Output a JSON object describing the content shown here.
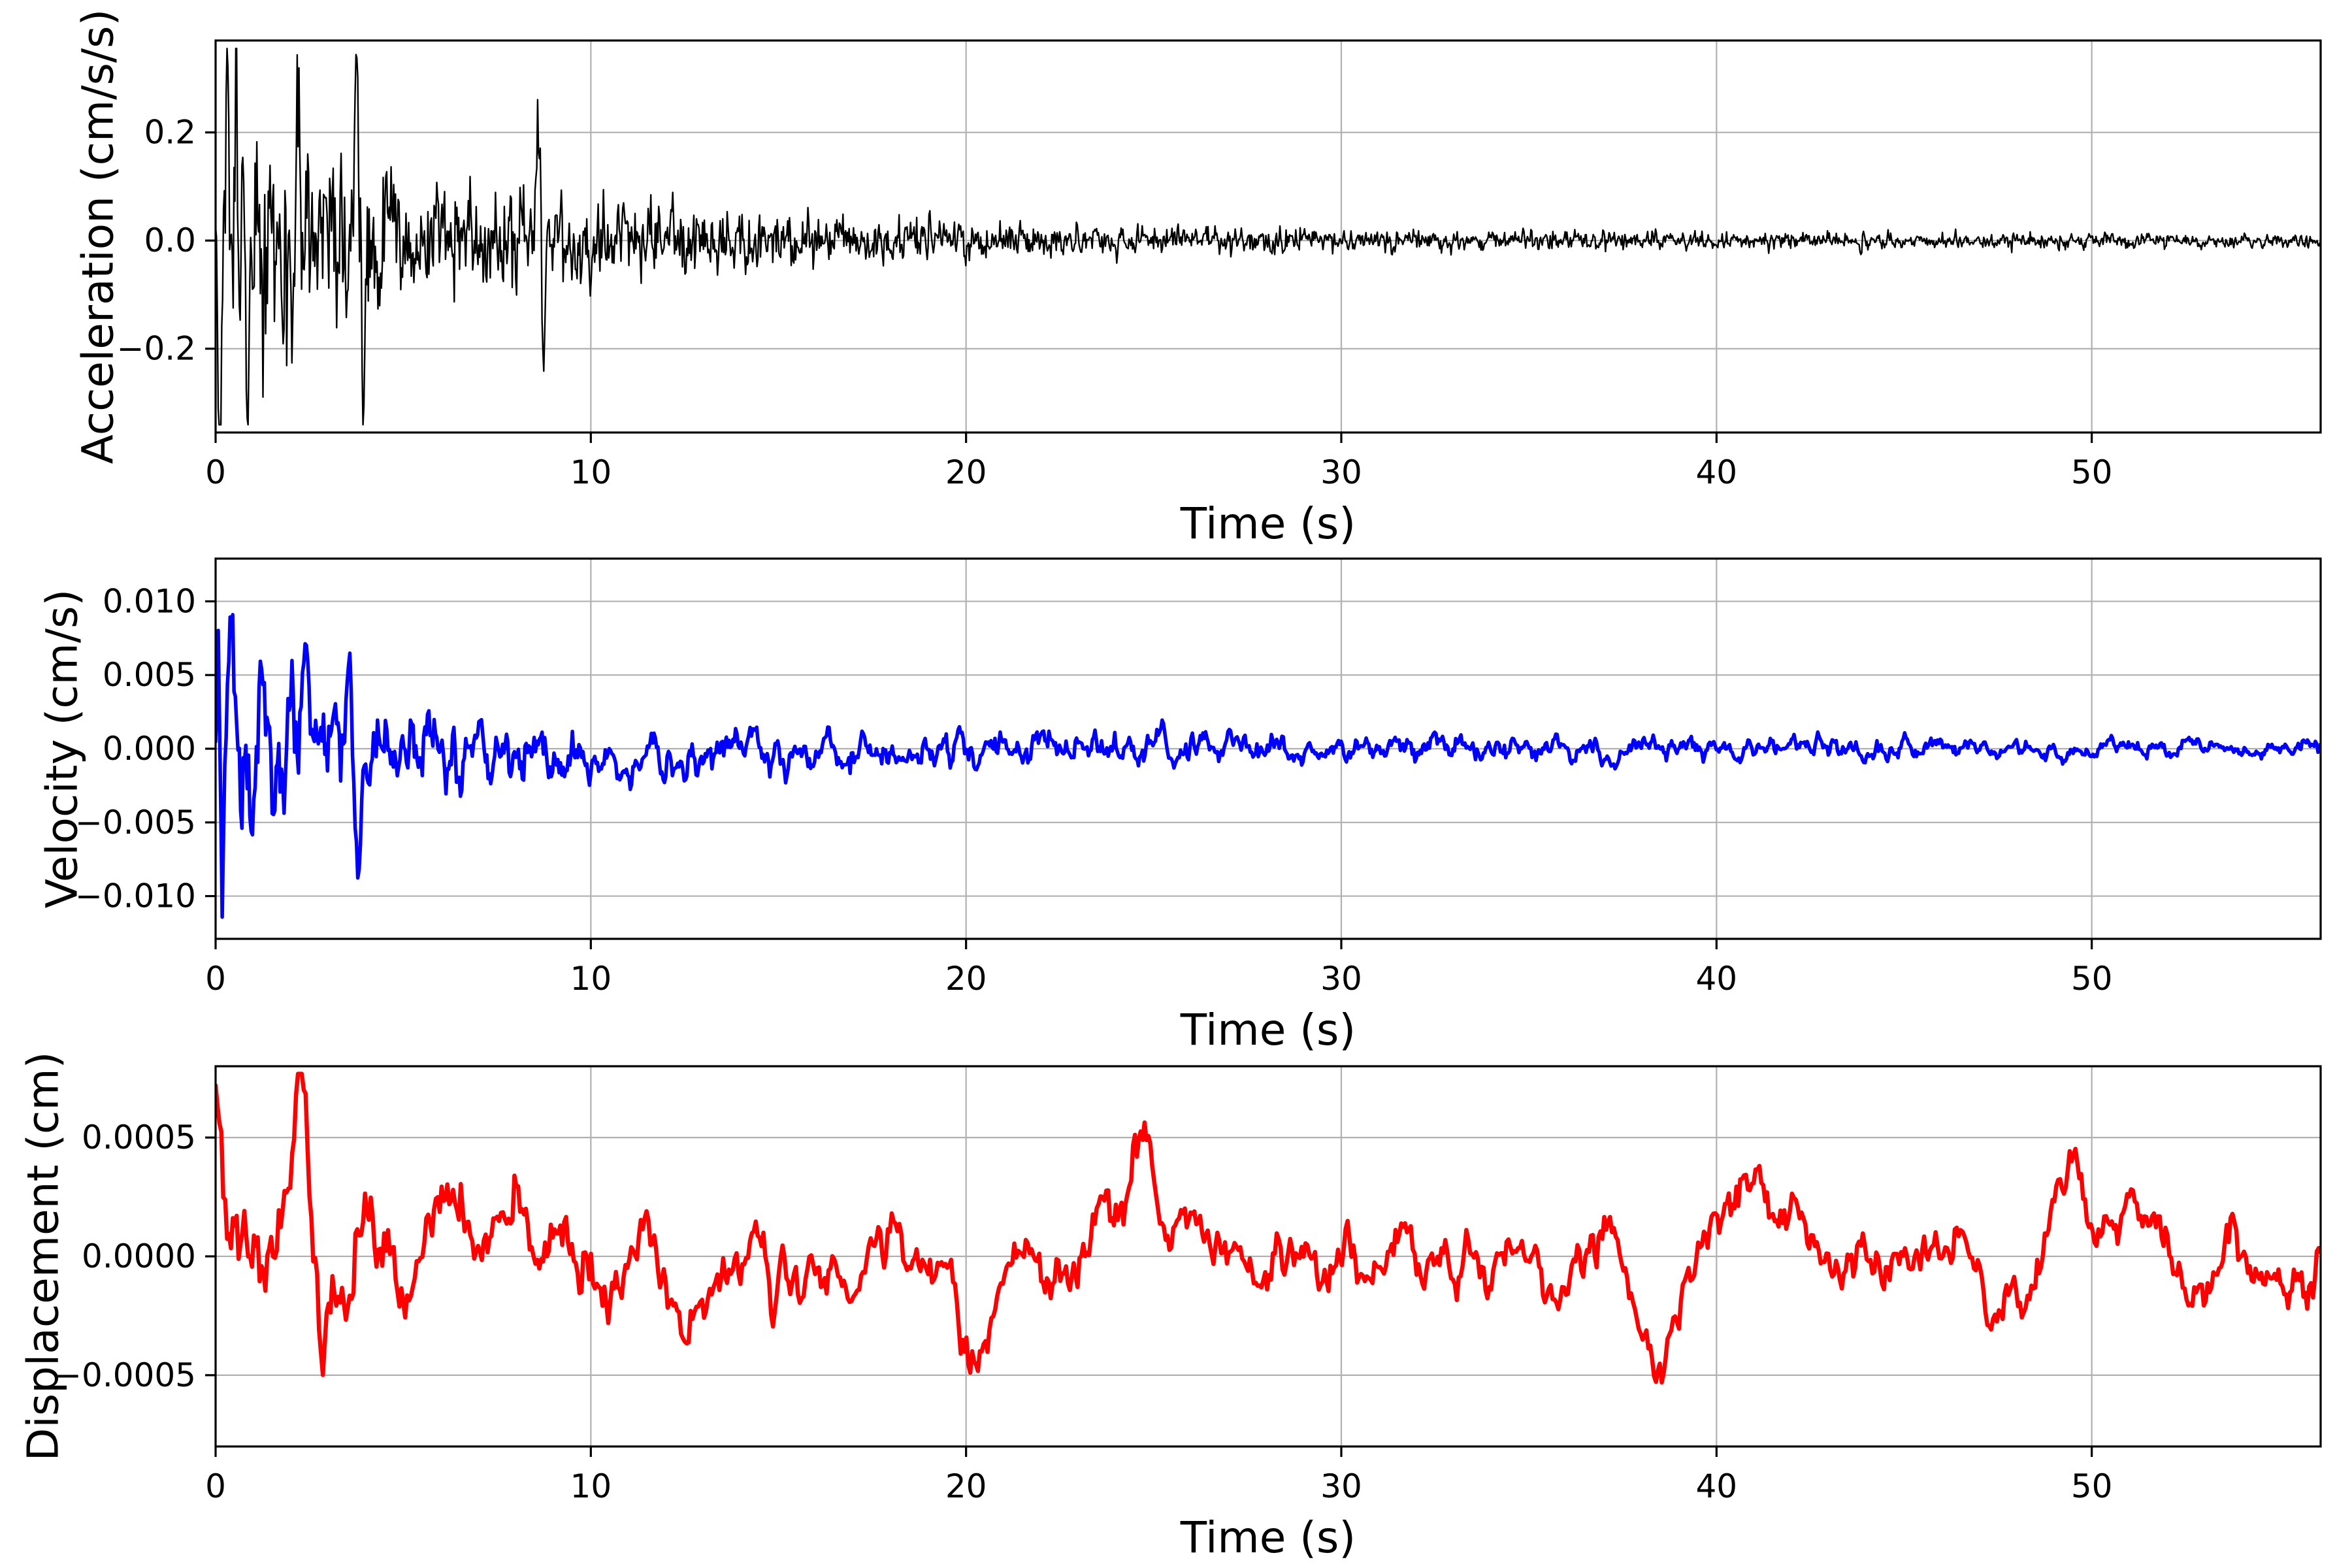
{
  "figure": {
    "background": "#ffffff",
    "grid_color": "#b0b0b0",
    "spine_color": "#000000",
    "tick_color": "#000000"
  },
  "chart_data": {
    "type": "line",
    "title": "",
    "grid": true,
    "legend": false,
    "x": {
      "label": "Time (s)",
      "lim": [
        0,
        56.1
      ],
      "ticks": [
        0,
        10,
        20,
        30,
        40,
        50
      ],
      "tick_labels": [
        "0",
        "10",
        "20",
        "30",
        "40",
        "50"
      ]
    },
    "panels": [
      {
        "name": "acceleration",
        "ylabel": "Acceleration (cm/s/s)",
        "color": "#000000",
        "line_width": 2.4,
        "ylim": [
          -0.355,
          0.37
        ],
        "yticks": [
          0.2,
          0.0,
          -0.2
        ],
        "ytick_labels": [
          "0.2",
          "0.0",
          "−0.2"
        ],
        "peak_values": {
          "max": 0.34,
          "max_t": 0.3,
          "min": -0.33,
          "min_t": 0.12
        },
        "signal": {
          "seed": 101,
          "n": 2400,
          "ar": 0.3,
          "sd_envelope": [
            {
              "a": 0.105,
              "tau": 7
            },
            {
              "a": 0.016,
              "tau": 55
            }
          ],
          "spikes": [
            [
              0.12,
              -0.3,
              0.05
            ],
            [
              0.3,
              0.34,
              0.05
            ],
            [
              0.55,
              0.22,
              0.05
            ],
            [
              0.85,
              -0.27,
              0.05
            ],
            [
              1.45,
              0.24,
              0.05
            ],
            [
              2.2,
              0.26,
              0.05
            ],
            [
              3.75,
              0.31,
              0.06
            ],
            [
              3.92,
              -0.3,
              0.06
            ],
            [
              8.6,
              0.2,
              0.06
            ],
            [
              8.75,
              -0.23,
              0.06
            ]
          ]
        }
      },
      {
        "name": "velocity",
        "ylabel": "Velocity (cm/s)",
        "color": "#0000ff",
        "line_width": 5.5,
        "ylim": [
          -0.0129,
          0.0129
        ],
        "yticks": [
          0.01,
          0.005,
          0.0,
          -0.005,
          -0.01
        ],
        "ytick_labels": [
          "0.010",
          "0.005",
          "0.000",
          "−0.005",
          "−0.010"
        ],
        "peak_values": {
          "max": 0.0122,
          "max_t": 0.08,
          "min": -0.0101,
          "min_t": 0.17
        },
        "signal": {
          "seed": 202,
          "n": 1600,
          "ar": 0.8,
          "sd_envelope": [
            {
              "a": 0.0026,
              "tau": 4.5
            },
            {
              "a": 0.00095,
              "tau": 55
            }
          ],
          "spikes": [
            [
              0.08,
              0.0125,
              0.06
            ],
            [
              0.17,
              -0.0105,
              0.07
            ],
            [
              0.95,
              -0.0088,
              0.12
            ],
            [
              2.0,
              0.005,
              0.12
            ],
            [
              2.4,
              0.0066,
              0.12
            ],
            [
              3.55,
              0.008,
              0.1
            ],
            [
              3.8,
              -0.0058,
              0.1
            ]
          ]
        }
      },
      {
        "name": "displacement",
        "ylabel": "Displacement (cm)",
        "color": "#ff0000",
        "line_width": 6.5,
        "ylim": [
          -0.0008,
          0.0008
        ],
        "yticks": [
          0.0005,
          0.0,
          -0.0005
        ],
        "ytick_labels": [
          "0.0005",
          "0.0000",
          "−0.0005"
        ],
        "peak_values": {
          "max": 0.00073,
          "max_t": 2.25,
          "min": -0.00047,
          "min_t": 1.55
        },
        "signal": {
          "seed": 303,
          "n": 1100,
          "ar": 0.92,
          "sd_envelope": [
            {
              "a": 0.00012,
              "tau": 8
            },
            {
              "a": 0.00011,
              "tau": 1000
            }
          ],
          "spikes": [
            [
              0.03,
              0.00066,
              0.25
            ],
            [
              0.55,
              -0.00025,
              0.3
            ],
            [
              1.55,
              -0.00045,
              0.45
            ],
            [
              2.25,
              0.00075,
              0.3
            ],
            [
              3.6,
              -0.0003,
              0.4
            ],
            [
              4.9,
              -0.0002,
              0.5
            ],
            [
              6.2,
              0.00024,
              0.6
            ],
            [
              20.3,
              -0.00035,
              0.5
            ],
            [
              24.7,
              0.0003,
              0.4
            ],
            [
              38.6,
              -0.00033,
              0.9
            ],
            [
              41.2,
              0.00024,
              0.8
            ],
            [
              47.6,
              -0.00026,
              0.6
            ],
            [
              49.2,
              0.00023,
              0.5
            ]
          ]
        }
      }
    ]
  }
}
